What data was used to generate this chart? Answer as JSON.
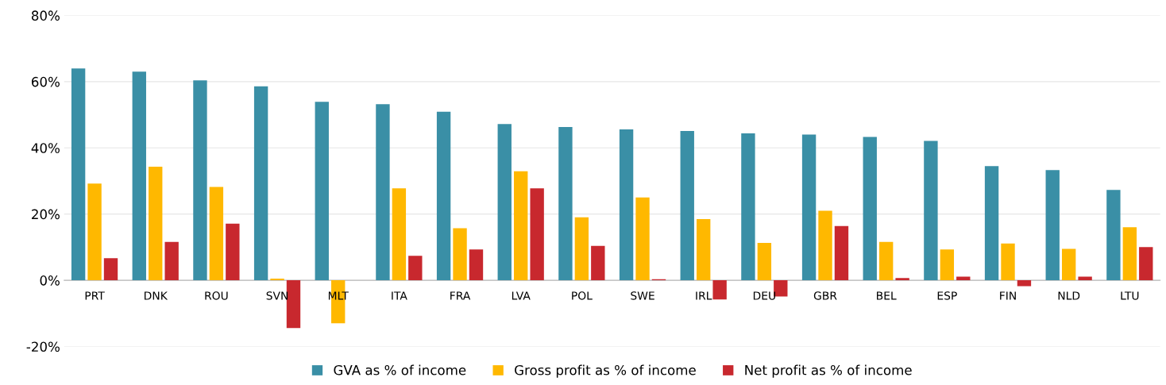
{
  "chart_data": {
    "type": "bar",
    "categories": [
      "PRT",
      "DNK",
      "ROU",
      "SVN",
      "MLT",
      "ITA",
      "FRA",
      "LVA",
      "POL",
      "SWE",
      "IRL",
      "DEU",
      "GBR",
      "BEL",
      "ESP",
      "FIN",
      "NLD",
      "LTU"
    ],
    "series": [
      {
        "name": "GVA as % of income",
        "color": "#3a8fa6",
        "values": [
          64,
          63,
          60.4,
          58.6,
          53.9,
          53.2,
          50.9,
          47.2,
          46.3,
          45.6,
          45.1,
          44.4,
          44,
          43.3,
          42.1,
          34.5,
          33.3,
          27.3
        ]
      },
      {
        "name": "Gross profit as % of income",
        "color": "#ffb800",
        "values": [
          29.2,
          34.3,
          28.2,
          0.5,
          -13,
          27.8,
          15.7,
          32.9,
          19,
          25,
          18.5,
          11.3,
          21,
          11.6,
          9.3,
          11.1,
          9.5,
          16
        ]
      },
      {
        "name": "Net profit as % of income",
        "color": "#c8282e",
        "values": [
          6.7,
          11.6,
          17.1,
          -14.4,
          0,
          7.4,
          9.3,
          27.8,
          10.4,
          0.3,
          -5.8,
          -4.9,
          16.4,
          0.7,
          1.1,
          -1.8,
          1.1,
          10
        ]
      }
    ],
    "ylim": [
      -20,
      80
    ],
    "yticks": [
      {
        "value": -20,
        "label": "-20%"
      },
      {
        "value": 0,
        "label": "0%"
      },
      {
        "value": 20,
        "label": "20%"
      },
      {
        "value": 40,
        "label": "40%"
      },
      {
        "value": 60,
        "label": "60%"
      },
      {
        "value": 80,
        "label": "80%"
      }
    ],
    "grid": "y",
    "legend": "bottom"
  }
}
